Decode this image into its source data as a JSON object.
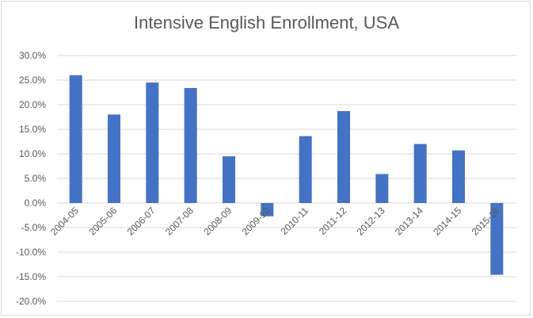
{
  "chart_data": {
    "type": "bar",
    "title": "Intensive English Enrollment, USA",
    "xlabel": "",
    "ylabel": "",
    "categories": [
      "2004-05",
      "2005-06",
      "2006-07",
      "2007-08",
      "2008-09",
      "2009-10",
      "2010-11",
      "2011-12",
      "2012-13",
      "2013-14",
      "2014-15",
      "2015-16"
    ],
    "values": [
      26.0,
      18.0,
      24.5,
      23.4,
      9.5,
      -2.7,
      13.6,
      18.7,
      5.9,
      12.0,
      10.7,
      -14.6
    ],
    "value_format": "percent",
    "yticks": [
      "30.0%",
      "25.0%",
      "20.0%",
      "15.0%",
      "10.0%",
      "5.0%",
      "0.0%",
      "-5.0%",
      "-10.0%",
      "-15.0%",
      "-20.0%"
    ],
    "ylim": [
      -20,
      30
    ],
    "grid": true,
    "legend": "none",
    "bar_color": "#4472c4"
  }
}
